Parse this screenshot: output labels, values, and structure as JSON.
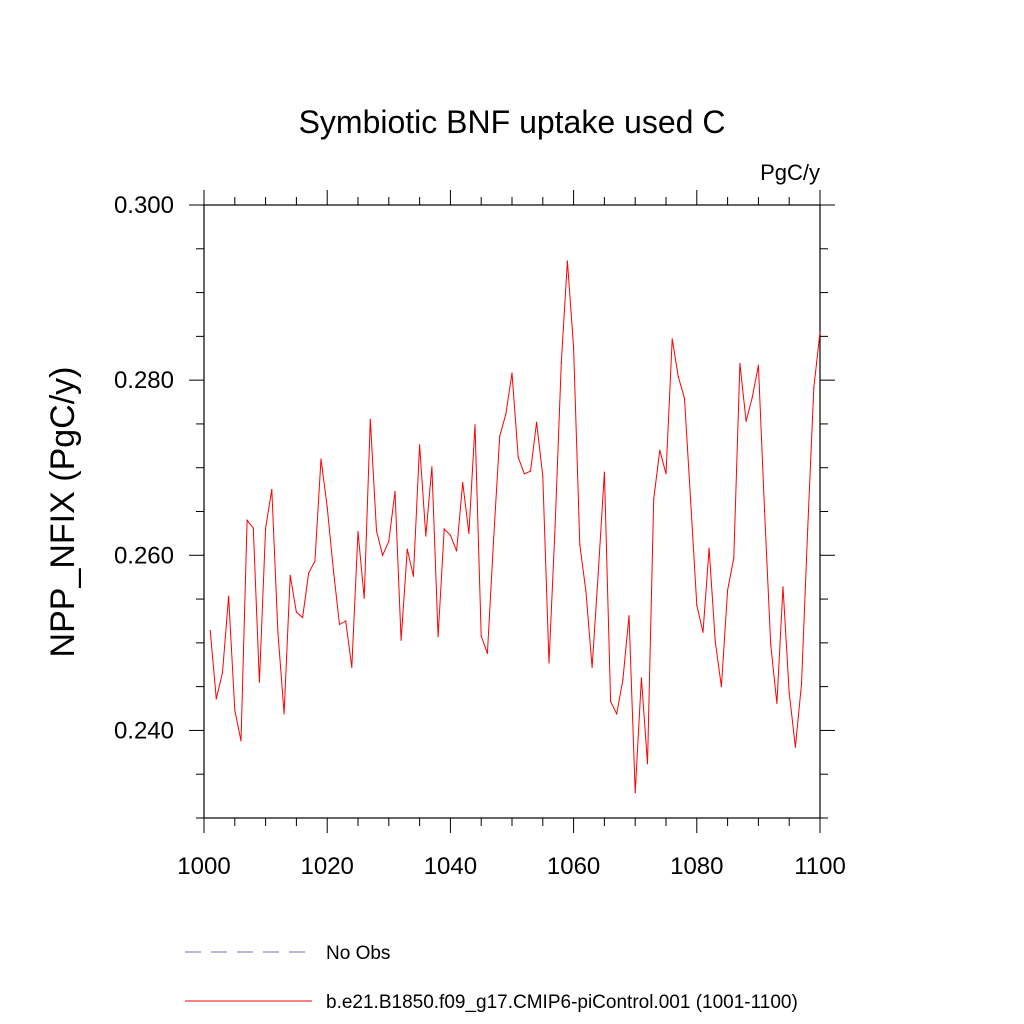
{
  "chart_data": {
    "type": "line",
    "title": "Symbiotic BNF uptake used C",
    "units_label": "PgC/y",
    "xlabel": "",
    "ylabel": "NPP_NFIX  (PgC/y)",
    "xlim": [
      1000,
      1100
    ],
    "ylim": [
      0.23,
      0.3
    ],
    "x_major_ticks": [
      1000,
      1020,
      1040,
      1060,
      1080,
      1100
    ],
    "x_tick_labels": [
      "1000",
      "1020",
      "1040",
      "1060",
      "1080",
      "1100"
    ],
    "x_minor_step": 5,
    "y_major_ticks": [
      0.24,
      0.26,
      0.28,
      0.3
    ],
    "y_tick_labels": [
      "0.240",
      "0.260",
      "0.280",
      "0.300"
    ],
    "y_minor_step": 0.005,
    "grid": false,
    "legend_position": "bottom",
    "series": [
      {
        "name": "b.e21.B1850.f09_g17.CMIP6-piControl.001 (1001-1100)",
        "color": "#ff0000",
        "style": "solid",
        "x": [
          1001,
          1002,
          1003,
          1004,
          1005,
          1006,
          1007,
          1008,
          1009,
          1010,
          1011,
          1012,
          1013,
          1014,
          1015,
          1016,
          1017,
          1018,
          1019,
          1020,
          1021,
          1022,
          1023,
          1024,
          1025,
          1026,
          1027,
          1028,
          1029,
          1030,
          1031,
          1032,
          1033,
          1034,
          1035,
          1036,
          1037,
          1038,
          1039,
          1040,
          1041,
          1042,
          1043,
          1044,
          1045,
          1046,
          1047,
          1048,
          1049,
          1050,
          1051,
          1052,
          1053,
          1054,
          1055,
          1056,
          1057,
          1058,
          1059,
          1060,
          1061,
          1062,
          1063,
          1064,
          1065,
          1066,
          1067,
          1068,
          1069,
          1070,
          1071,
          1072,
          1073,
          1074,
          1075,
          1076,
          1077,
          1078,
          1079,
          1080,
          1081,
          1082,
          1083,
          1084,
          1085,
          1086,
          1087,
          1088,
          1089,
          1090,
          1091,
          1092,
          1093,
          1094,
          1095,
          1096,
          1097,
          1098,
          1099,
          1100
        ],
        "values": [
          0.2514,
          0.2436,
          0.2466,
          0.2553,
          0.2423,
          0.2388,
          0.264,
          0.2631,
          0.2455,
          0.2631,
          0.2675,
          0.2512,
          0.2419,
          0.2577,
          0.2535,
          0.2529,
          0.258,
          0.2593,
          0.271,
          0.2655,
          0.2583,
          0.2521,
          0.2525,
          0.2472,
          0.2627,
          0.2551,
          0.2755,
          0.2628,
          0.26,
          0.2616,
          0.2673,
          0.2503,
          0.2607,
          0.2576,
          0.2726,
          0.2622,
          0.2701,
          0.2507,
          0.263,
          0.2623,
          0.2605,
          0.2683,
          0.2625,
          0.2749,
          0.2508,
          0.2488,
          0.2616,
          0.2736,
          0.2761,
          0.2808,
          0.2712,
          0.2693,
          0.2696,
          0.2752,
          0.269,
          0.2477,
          0.2633,
          0.282,
          0.2936,
          0.2837,
          0.2612,
          0.2559,
          0.2472,
          0.2579,
          0.2695,
          0.2433,
          0.2419,
          0.2458,
          0.2531,
          0.2329,
          0.246,
          0.2362,
          0.2664,
          0.272,
          0.2693,
          0.2847,
          0.2804,
          0.2779,
          0.2663,
          0.2543,
          0.2512,
          0.2608,
          0.2501,
          0.245,
          0.256,
          0.2597,
          0.2819,
          0.2753,
          0.278,
          0.2817,
          0.265,
          0.2498,
          0.2431,
          0.2564,
          0.2443,
          0.2381,
          0.2453,
          0.263,
          0.2791,
          0.2855
        ]
      }
    ],
    "reference_series": {
      "name": "No Obs",
      "color": "#7b6fc2",
      "style": "dashed"
    }
  }
}
